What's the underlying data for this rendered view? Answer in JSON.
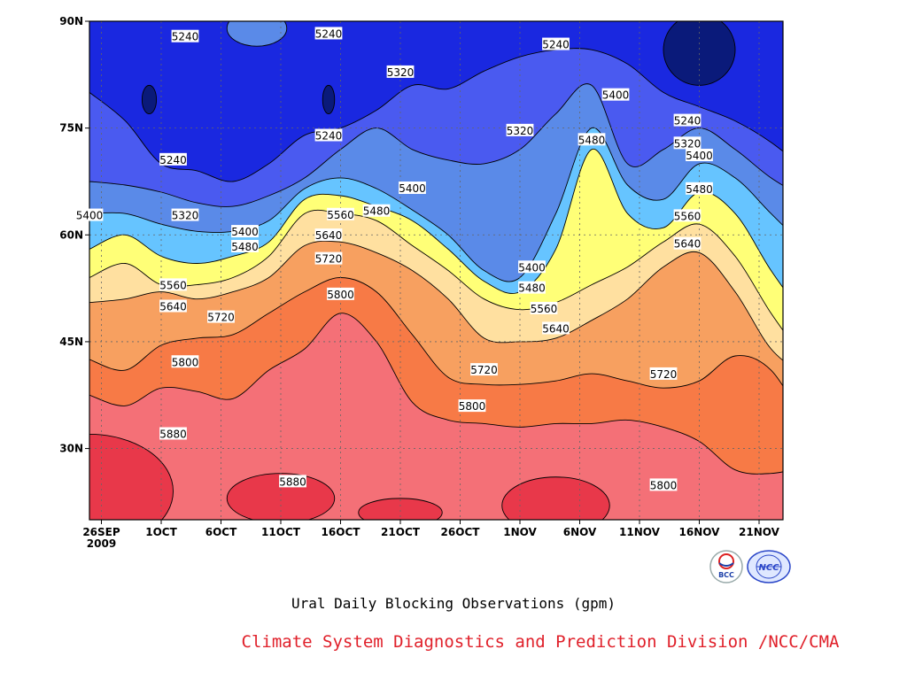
{
  "chart_data": {
    "type": "heatmap",
    "title": "Ural Daily Blocking Observations (gpm)",
    "credit": "Climate System Diagnostics and Prediction Division /NCC/CMA",
    "x_ticks": [
      "26SEP\n2009",
      "1OCT",
      "6OCT",
      "11OCT",
      "16OCT",
      "21OCT",
      "26OCT",
      "1NOV",
      "6NOV",
      "11NOV",
      "16NOV",
      "21NOV"
    ],
    "y_ticks": [
      "30N",
      "45N",
      "60N",
      "75N",
      "90N"
    ],
    "x_range": [
      "2009-09-25",
      "2009-11-22"
    ],
    "y_range": [
      20,
      90
    ],
    "grid": true,
    "levels": [
      5240,
      5320,
      5400,
      5480,
      5560,
      5640,
      5720,
      5800,
      5880
    ],
    "fill_colors": [
      "#0a1a7a",
      "#1a28e0",
      "#4a5af0",
      "#5a8ae8",
      "#66c4ff",
      "#ffff77",
      "#ffe0a0",
      "#f7a060",
      "#f77a46",
      "#f47077",
      "#e8384a"
    ],
    "isolines": [
      {
        "level": 5800,
        "lat": [
          37.5,
          36.0,
          38.5,
          38.0,
          37.0,
          41.0,
          44.0,
          49.0,
          45.0,
          36.5,
          34.0,
          33.5,
          33.0,
          33.5,
          33.5,
          34.0,
          33.0,
          31.0,
          27.0,
          26.5,
          27.5
        ]
      },
      {
        "level": 5720,
        "lat": [
          42.5,
          41.0,
          44.5,
          45.5,
          46.0,
          49.0,
          52.0,
          54.0,
          52.0,
          46.0,
          40.0,
          39.0,
          39.0,
          39.5,
          40.5,
          39.5,
          38.5,
          39.5,
          43.0,
          41.0,
          33.0
        ]
      },
      {
        "level": 5640,
        "lat": [
          50.5,
          51.0,
          52.0,
          51.0,
          52.0,
          54.0,
          58.5,
          59.0,
          57.5,
          55.0,
          51.0,
          45.5,
          45.0,
          45.5,
          48.0,
          51.0,
          55.5,
          57.5,
          52.0,
          44.0,
          40.0
        ]
      },
      {
        "level": 5560,
        "lat": [
          54.0,
          56.0,
          53.0,
          53.0,
          54.0,
          57.0,
          63.0,
          63.0,
          62.0,
          58.5,
          55.0,
          51.0,
          49.5,
          50.5,
          53.0,
          55.5,
          59.0,
          61.5,
          57.0,
          49.0,
          42.0
        ]
      },
      {
        "level": 5480,
        "lat": [
          58.0,
          60.0,
          57.0,
          56.0,
          57.0,
          59.0,
          65.0,
          65.5,
          64.0,
          62.0,
          58.0,
          53.5,
          52.0,
          58.0,
          72.0,
          63.0,
          61.0,
          66.0,
          63.0,
          55.0,
          48.0
        ]
      },
      {
        "level": 5400,
        "lat": [
          63.0,
          63.0,
          61.5,
          60.5,
          60.5,
          62.0,
          66.5,
          68.0,
          66.5,
          63.5,
          60.0,
          55.0,
          54.0,
          63.0,
          75.0,
          67.0,
          65.0,
          70.0,
          68.0,
          63.0,
          58.0
        ]
      },
      {
        "level": 5320,
        "lat": [
          67.5,
          67.0,
          66.0,
          64.5,
          64.0,
          65.5,
          68.0,
          72.0,
          75.0,
          72.0,
          70.5,
          70.0,
          72.0,
          77.0,
          81.0,
          70.0,
          72.0,
          75.0,
          72.0,
          68.0,
          65.0
        ]
      },
      {
        "level": 5240,
        "lat": [
          80.0,
          76.0,
          70.0,
          69.0,
          67.5,
          70.0,
          74.0,
          75.0,
          77.5,
          81.0,
          80.5,
          83.0,
          85.0,
          86.0,
          86.0,
          84.0,
          80.0,
          78.0,
          76.0,
          73.0,
          69.0
        ]
      }
    ],
    "labels": [
      {
        "text": "5240",
        "date": "2009-10-03",
        "lat": 87.8
      },
      {
        "text": "5240",
        "date": "2009-10-15",
        "lat": 88.2
      },
      {
        "text": "5320",
        "date": "2009-10-21",
        "lat": 82.8
      },
      {
        "text": "5240",
        "date": "2009-11-03",
        "lat": 86.7
      },
      {
        "text": "5400",
        "date": "2009-11-08",
        "lat": 79.6
      },
      {
        "text": "5240",
        "date": "2009-11-14",
        "lat": 76.0
      },
      {
        "text": "5320",
        "date": "2009-11-14",
        "lat": 72.8
      },
      {
        "text": "5400",
        "date": "2009-11-15",
        "lat": 71.1
      },
      {
        "text": "5320",
        "date": "2009-10-31",
        "lat": 74.6
      },
      {
        "text": "5480",
        "date": "2009-11-06",
        "lat": 73.3
      },
      {
        "text": "5240",
        "date": "2009-10-15",
        "lat": 73.9
      },
      {
        "text": "5240",
        "date": "2009-10-02",
        "lat": 70.5
      },
      {
        "text": "5400",
        "date": "2009-10-22",
        "lat": 66.5
      },
      {
        "text": "5480",
        "date": "2009-11-15",
        "lat": 66.4
      },
      {
        "text": "5400",
        "date": "2009-09-25",
        "lat": 62.7
      },
      {
        "text": "5320",
        "date": "2009-10-03",
        "lat": 62.7
      },
      {
        "text": "5560",
        "date": "2009-10-16",
        "lat": 62.8
      },
      {
        "text": "5480",
        "date": "2009-10-19",
        "lat": 63.3
      },
      {
        "text": "5560",
        "date": "2009-11-14",
        "lat": 62.6
      },
      {
        "text": "5400",
        "date": "2009-10-08",
        "lat": 60.4
      },
      {
        "text": "5640",
        "date": "2009-10-15",
        "lat": 59.9
      },
      {
        "text": "5640",
        "date": "2009-11-14",
        "lat": 58.7
      },
      {
        "text": "5480",
        "date": "2009-10-08",
        "lat": 58.3
      },
      {
        "text": "5720",
        "date": "2009-10-15",
        "lat": 56.6
      },
      {
        "text": "5400",
        "date": "2009-11-01",
        "lat": 55.4
      },
      {
        "text": "5480",
        "date": "2009-11-01",
        "lat": 52.5
      },
      {
        "text": "5560",
        "date": "2009-10-02",
        "lat": 52.9
      },
      {
        "text": "5800",
        "date": "2009-10-16",
        "lat": 51.6
      },
      {
        "text": "5640",
        "date": "2009-10-02",
        "lat": 49.9
      },
      {
        "text": "5560",
        "date": "2009-11-02",
        "lat": 49.6
      },
      {
        "text": "5720",
        "date": "2009-10-06",
        "lat": 48.4
      },
      {
        "text": "5640",
        "date": "2009-11-03",
        "lat": 46.8
      },
      {
        "text": "5800",
        "date": "2009-10-03",
        "lat": 42.1
      },
      {
        "text": "5720",
        "date": "2009-10-28",
        "lat": 41.0
      },
      {
        "text": "5720",
        "date": "2009-11-12",
        "lat": 40.4
      },
      {
        "text": "5800",
        "date": "2009-10-27",
        "lat": 35.9
      },
      {
        "text": "5880",
        "date": "2009-10-02",
        "lat": 32.0
      },
      {
        "text": "5880",
        "date": "2009-10-12",
        "lat": 25.3
      },
      {
        "text": "5800",
        "date": "2009-11-12",
        "lat": 24.8
      }
    ]
  },
  "logos": {
    "left_text": "BCC",
    "right_text": "NCC"
  }
}
